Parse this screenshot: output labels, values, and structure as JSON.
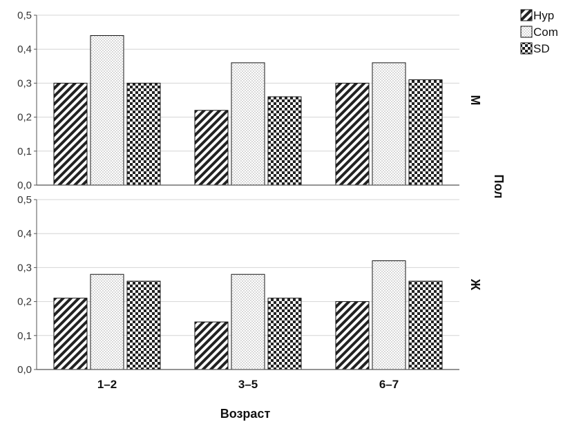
{
  "chart_data": {
    "type": "bar",
    "xlabel": "Возраст",
    "panel_axis_label": "Пол",
    "categories": [
      "1–2",
      "3–5",
      "6–7"
    ],
    "ylim": [
      0,
      0.5
    ],
    "y_ticks": [
      "0,0",
      "0,1",
      "0,2",
      "0,3",
      "0,4",
      "0,5"
    ],
    "grid": true,
    "legend_position": "top-right",
    "legend": [
      {
        "name": "Hyp",
        "pattern": "diagonal-hatch"
      },
      {
        "name": "Com",
        "pattern": "dots"
      },
      {
        "name": "SD",
        "pattern": "checker"
      }
    ],
    "panels": [
      {
        "label": "М",
        "series": [
          {
            "name": "Hyp",
            "values": [
              0.3,
              0.22,
              0.3
            ]
          },
          {
            "name": "Com",
            "values": [
              0.44,
              0.36,
              0.36
            ]
          },
          {
            "name": "SD",
            "values": [
              0.3,
              0.26,
              0.31
            ]
          }
        ]
      },
      {
        "label": "Ж",
        "series": [
          {
            "name": "Hyp",
            "values": [
              0.21,
              0.14,
              0.2
            ]
          },
          {
            "name": "Com",
            "values": [
              0.28,
              0.28,
              0.32
            ]
          },
          {
            "name": "SD",
            "values": [
              0.26,
              0.21,
              0.26
            ]
          }
        ]
      }
    ]
  }
}
